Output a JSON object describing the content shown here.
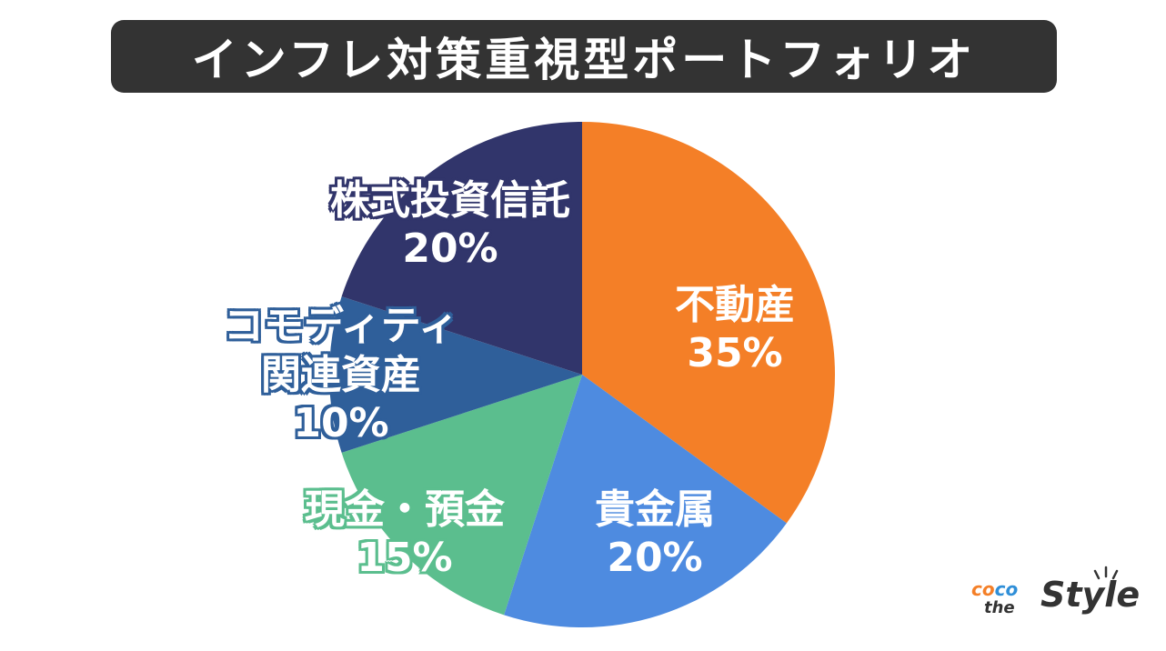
{
  "title": "インフレ対策重視型ポートフォリオ",
  "chart_data": {
    "type": "pie",
    "title": "インフレ対策重視型ポートフォリオ",
    "categories": [
      "不動産",
      "貴金属",
      "現金・預金",
      "コモディティ関連資産",
      "株式投資信託"
    ],
    "values": [
      35,
      20,
      15,
      10,
      20
    ],
    "colors": [
      "#F47F27",
      "#4E8BE0",
      "#5BBE8E",
      "#2F5F9A",
      "#31356B"
    ],
    "start_angle": "top (12 o'clock), clockwise",
    "legend": "none (inline labels)"
  },
  "labels": [
    {
      "name": "不動産",
      "pct": "35%"
    },
    {
      "name": "貴金属",
      "pct": "20%"
    },
    {
      "name": "現金・預金",
      "pct": "15%"
    },
    {
      "name_line1": "コモディティ",
      "name_line2": "関連資産",
      "pct": "10%"
    },
    {
      "name": "株式投資信託",
      "pct": "20%"
    }
  ],
  "logo": {
    "coco_1": "co",
    "coco_2": "co",
    "the": "the",
    "style": "Style"
  }
}
